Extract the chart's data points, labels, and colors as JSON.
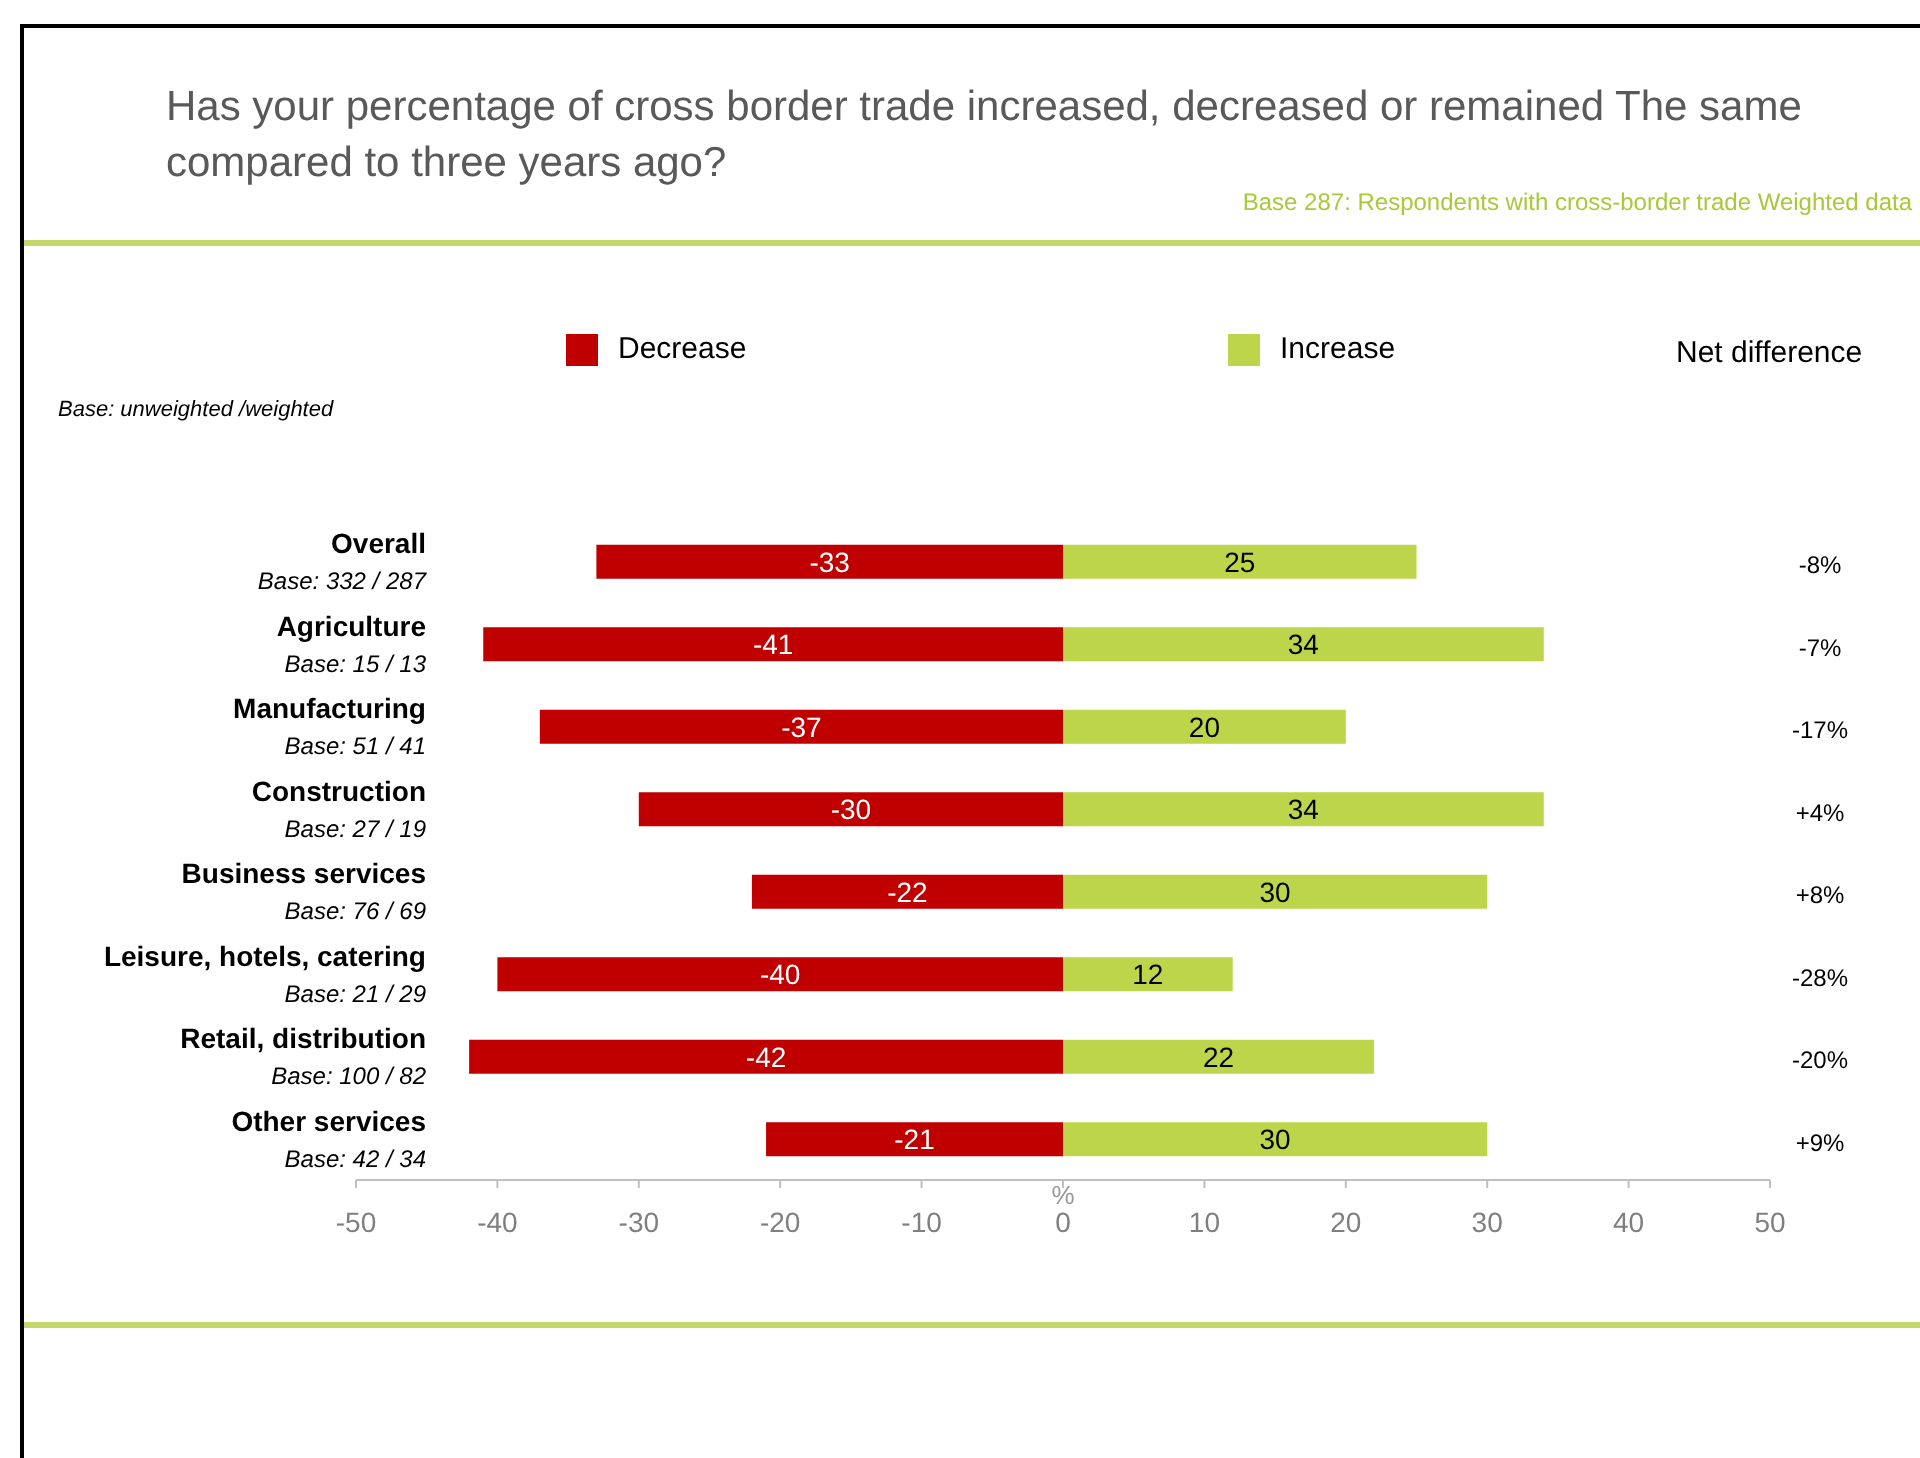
{
  "chart_data": {
    "type": "bar",
    "orientation": "horizontal",
    "stacked": true,
    "title": "Has your percentage of cross border trade increased, decreased or remained The same compared to three years ago?",
    "subtitle": "Base 287: Respondents with cross-border trade Weighted data",
    "xlabel": "%",
    "categories": [
      "Overall",
      "Agriculture",
      "Manufacturing",
      "Construction",
      "Business services",
      "Leisure, hotels, catering",
      "Retail, distribution",
      "Other services"
    ],
    "series": [
      {
        "name": "Decrease",
        "color": "#c00000",
        "values": [
          -33,
          -41,
          -37,
          -30,
          -22,
          -40,
          -42,
          -21
        ]
      },
      {
        "name": "Increase",
        "color": "#bcd54a",
        "values": [
          25,
          34,
          20,
          34,
          30,
          12,
          22,
          30
        ]
      }
    ],
    "xlim": [
      -50,
      50
    ],
    "xticks": [
      -50,
      -40,
      -30,
      -20,
      -10,
      0,
      10,
      20,
      30,
      40,
      50
    ],
    "data_labels": true,
    "legend": "top",
    "grid": false,
    "annotations": [
      "Base: unweighted /weighted",
      "Net difference",
      "Base: 332 / 287",
      "Base: 15 / 13",
      "Base: 51 / 41",
      "Base: 27 / 19",
      "Base: 76 / 69",
      "Base: 21 / 29",
      "Base: 100 / 82",
      "Base: 42 / 34",
      "-8%",
      "-7%",
      "-17%",
      "+4%",
      "+8%",
      "-28%",
      "-20%",
      "+9%"
    ]
  }
}
